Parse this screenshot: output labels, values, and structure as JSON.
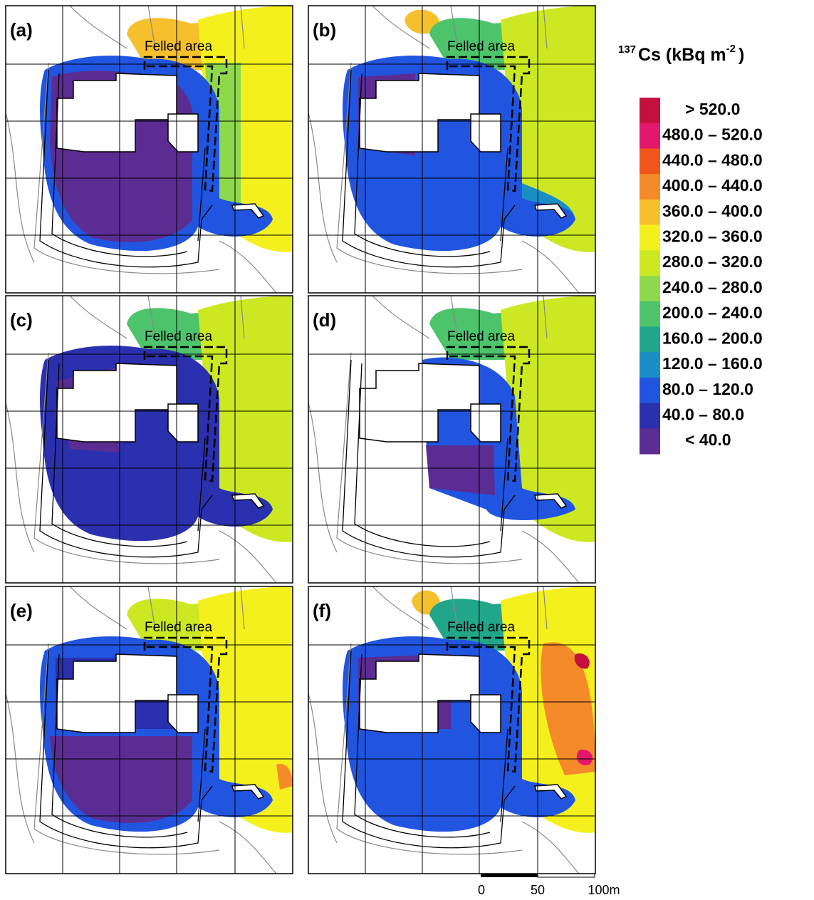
{
  "panels": [
    {
      "label": "(a)",
      "annotation": "Felled area"
    },
    {
      "label": "(b)",
      "annotation": "Felled area"
    },
    {
      "label": "(c)",
      "annotation": "Felled area"
    },
    {
      "label": "(d)",
      "annotation": "Felled area"
    },
    {
      "label": "(e)",
      "annotation": "Felled area"
    },
    {
      "label": "(f)",
      "annotation": "Felled area"
    }
  ],
  "legend": {
    "title_superscript": "137",
    "title_text": "Cs (kBq m",
    "title_exponent": "-2",
    "title_close": ")",
    "items": [
      {
        "label": "> 520.0",
        "color": "#c4103c"
      },
      {
        "label": "480.0 – 520.0",
        "color": "#e3186a"
      },
      {
        "label": "440.0 – 480.0",
        "color": "#f0561c"
      },
      {
        "label": "400.0 – 440.0",
        "color": "#f58a2a"
      },
      {
        "label": "360.0 – 400.0",
        "color": "#f6bf2c"
      },
      {
        "label": "320.0 – 360.0",
        "color": "#f4f01e"
      },
      {
        "label": "280.0 – 320.0",
        "color": "#cbe823"
      },
      {
        "label": "240.0 – 280.0",
        "color": "#8ed84c"
      },
      {
        "label": "200.0 – 240.0",
        "color": "#4dc36c"
      },
      {
        "label": "160.0 – 200.0",
        "color": "#22a68a"
      },
      {
        "label": "120.0 – 160.0",
        "color": "#1b8fc5"
      },
      {
        "label": "80.0 – 120.0",
        "color": "#2155e0"
      },
      {
        "label": "40.0 – 80.0",
        "color": "#2b30ae"
      },
      {
        "label": "< 40.0",
        "color": "#5b2d92"
      }
    ]
  },
  "scale_bar": {
    "labels": [
      "0",
      "50",
      "100m"
    ]
  }
}
